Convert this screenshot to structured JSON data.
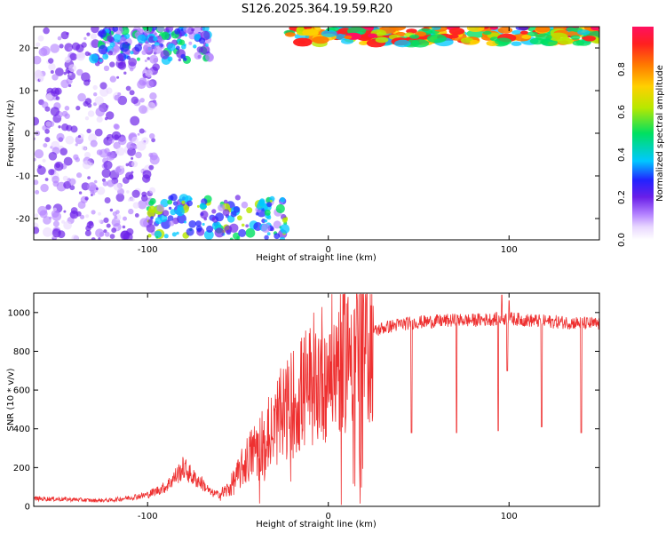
{
  "title": "S126.2025.364.19.59.R20",
  "chart_data": [
    {
      "type": "heatmap",
      "xlabel": "Height of straight line (km)",
      "ylabel": "Frequency (Hz)",
      "xlim": [
        -163,
        150
      ],
      "ylim": [
        -25,
        25
      ],
      "xticks": [
        -100,
        0,
        100
      ],
      "yticks": [
        -20,
        -10,
        0,
        10,
        20
      ],
      "colorbar": {
        "label": "Normalized spectral amplitude",
        "range": [
          0,
          1
        ],
        "ticks": [
          "0.0",
          "0.2",
          "0.4",
          "0.6",
          "0.8"
        ],
        "colors": [
          "#ffffff",
          "#e9d8ff",
          "#b482ff",
          "#6a1fe8",
          "#2222ff",
          "#00c8ff",
          "#00e060",
          "#b8e800",
          "#ffd000",
          "#ff7a00",
          "#ff2020",
          "#ff1060"
        ]
      },
      "features": [
        {
          "name": "upper-left speckle",
          "x": [
            -163,
            -95
          ],
          "f": [
            -25,
            25
          ],
          "amplitude": 0.25
        },
        {
          "name": "top-left strong cluster",
          "x": [
            -130,
            -65
          ],
          "f": [
            17,
            25
          ],
          "amplitude": 0.45
        },
        {
          "name": "bottom cluster",
          "x": [
            -100,
            -22
          ],
          "f": [
            -25,
            -15
          ],
          "amplitude": 0.5
        },
        {
          "name": "top band",
          "x": [
            -22,
            150
          ],
          "f": [
            21,
            25
          ],
          "amplitude": 0.95
        }
      ]
    },
    {
      "type": "line",
      "xlabel": "Height of straight line (km)",
      "ylabel": "SNR (10 * v/v)",
      "xlim": [
        -163,
        150
      ],
      "ylim": [
        0,
        1100
      ],
      "xticks": [
        -100,
        0,
        100
      ],
      "yticks": [
        0,
        200,
        400,
        600,
        800,
        1000
      ],
      "color": "#ee3030",
      "series": [
        {
          "name": "SNR",
          "x": [
            -163,
            -150,
            -140,
            -130,
            -120,
            -110,
            -100,
            -90,
            -85,
            -80,
            -75,
            -70,
            -65,
            -60,
            -55,
            -50,
            -45,
            -40,
            -35,
            -30,
            -25,
            -20,
            -15,
            -10,
            -5,
            0,
            5,
            10,
            15,
            20,
            25,
            30,
            40,
            50,
            60,
            70,
            80,
            90,
            100,
            110,
            120,
            130,
            140,
            150
          ],
          "values": [
            40,
            38,
            35,
            30,
            32,
            45,
            60,
            100,
            150,
            200,
            150,
            120,
            70,
            60,
            90,
            160,
            240,
            300,
            360,
            420,
            480,
            530,
            580,
            630,
            680,
            720,
            760,
            820,
            860,
            880,
            900,
            920,
            940,
            950,
            955,
            960,
            960,
            965,
            970,
            960,
            955,
            950,
            945,
            940
          ]
        }
      ],
      "dips": [
        {
          "x": 46,
          "value": 380
        },
        {
          "x": 71,
          "value": 380
        },
        {
          "x": 94,
          "value": 390
        },
        {
          "x": 99,
          "value": 700
        },
        {
          "x": 118,
          "value": 410
        },
        {
          "x": 140,
          "value": 380
        }
      ],
      "spikes": [
        {
          "x": 96,
          "value": 1090
        },
        {
          "x": 100,
          "value": 1060
        }
      ]
    }
  ]
}
